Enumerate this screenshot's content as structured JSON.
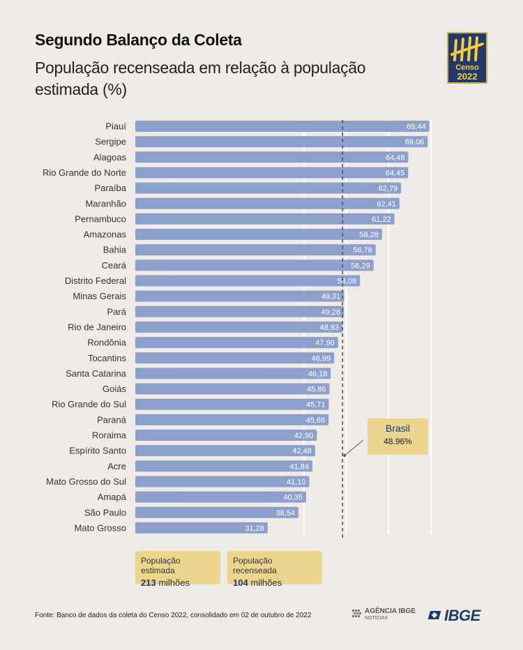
{
  "header": {
    "title": "Segundo Balanço da Coleta",
    "subtitle": "População recenseada em relação à população estimada (%)"
  },
  "logo": {
    "line1": "Censo",
    "line2": "2022"
  },
  "chart_data": {
    "type": "bar",
    "orientation": "horizontal",
    "title": "Segundo Balanço da Coleta",
    "subtitle": "População recenseada em relação à população estimada (%)",
    "categories": [
      "Piauí",
      "Sergipe",
      "Alagoas",
      "Rio Grande do Norte",
      "Paraíba",
      "Maranhão",
      "Pernambuco",
      "Amazonas",
      "Bahia",
      "Ceará",
      "Distrito Federal",
      "Minas Gerais",
      "Pará",
      "Rio de Janeiro",
      "Rondônia",
      "Tocantins",
      "Santa Catarina",
      "Goiás",
      "Rio Grande do Sul",
      "Paraná",
      "Roraima",
      "Espírito Santo",
      "Acre",
      "Mato Grosso do Sul",
      "Amapá",
      "São Paulo",
      "Mato Grosso"
    ],
    "values": [
      69.44,
      69.06,
      64.48,
      64.45,
      62.79,
      62.41,
      61.22,
      58.28,
      56.78,
      56.29,
      53.08,
      49.31,
      49.26,
      48.93,
      47.9,
      46.99,
      46.18,
      45.86,
      45.71,
      45.66,
      42.9,
      42.48,
      41.84,
      41.1,
      40.35,
      38.54,
      31.28
    ],
    "value_labels": [
      "69,44",
      "69,06",
      "64,48",
      "64,45",
      "62,79",
      "62,41",
      "61,22",
      "58,28",
      "56,78",
      "56,29",
      "53,08",
      "49,31",
      "49,26",
      "48,93",
      "47,90",
      "46,99",
      "46,18",
      "45,86",
      "45,71",
      "45,66",
      "42,90",
      "42,48",
      "41,84",
      "41,10",
      "40,35",
      "38,54",
      "31,28"
    ],
    "xlim": [
      0,
      70
    ],
    "grid": true,
    "reference_line": {
      "label": "Brasil",
      "value": 48.96,
      "value_label": "48.96%"
    },
    "bar_color": "#8da0cc",
    "reference_color": "#555555"
  },
  "summary": {
    "estimada": {
      "label": "População estimada",
      "value": "213",
      "unit": "milhões"
    },
    "recenseada": {
      "label": "População recenseada",
      "value": "104",
      "unit": "milhões"
    }
  },
  "footer": {
    "source": "Fonte: Banco de dados da coleta do Censo 2022, consolidado em 02 de outubro de 2022",
    "agencia": "AGÊNCIA IBGE",
    "agencia_sub": "NOTÍCIAS",
    "ibge": "IBGE"
  }
}
